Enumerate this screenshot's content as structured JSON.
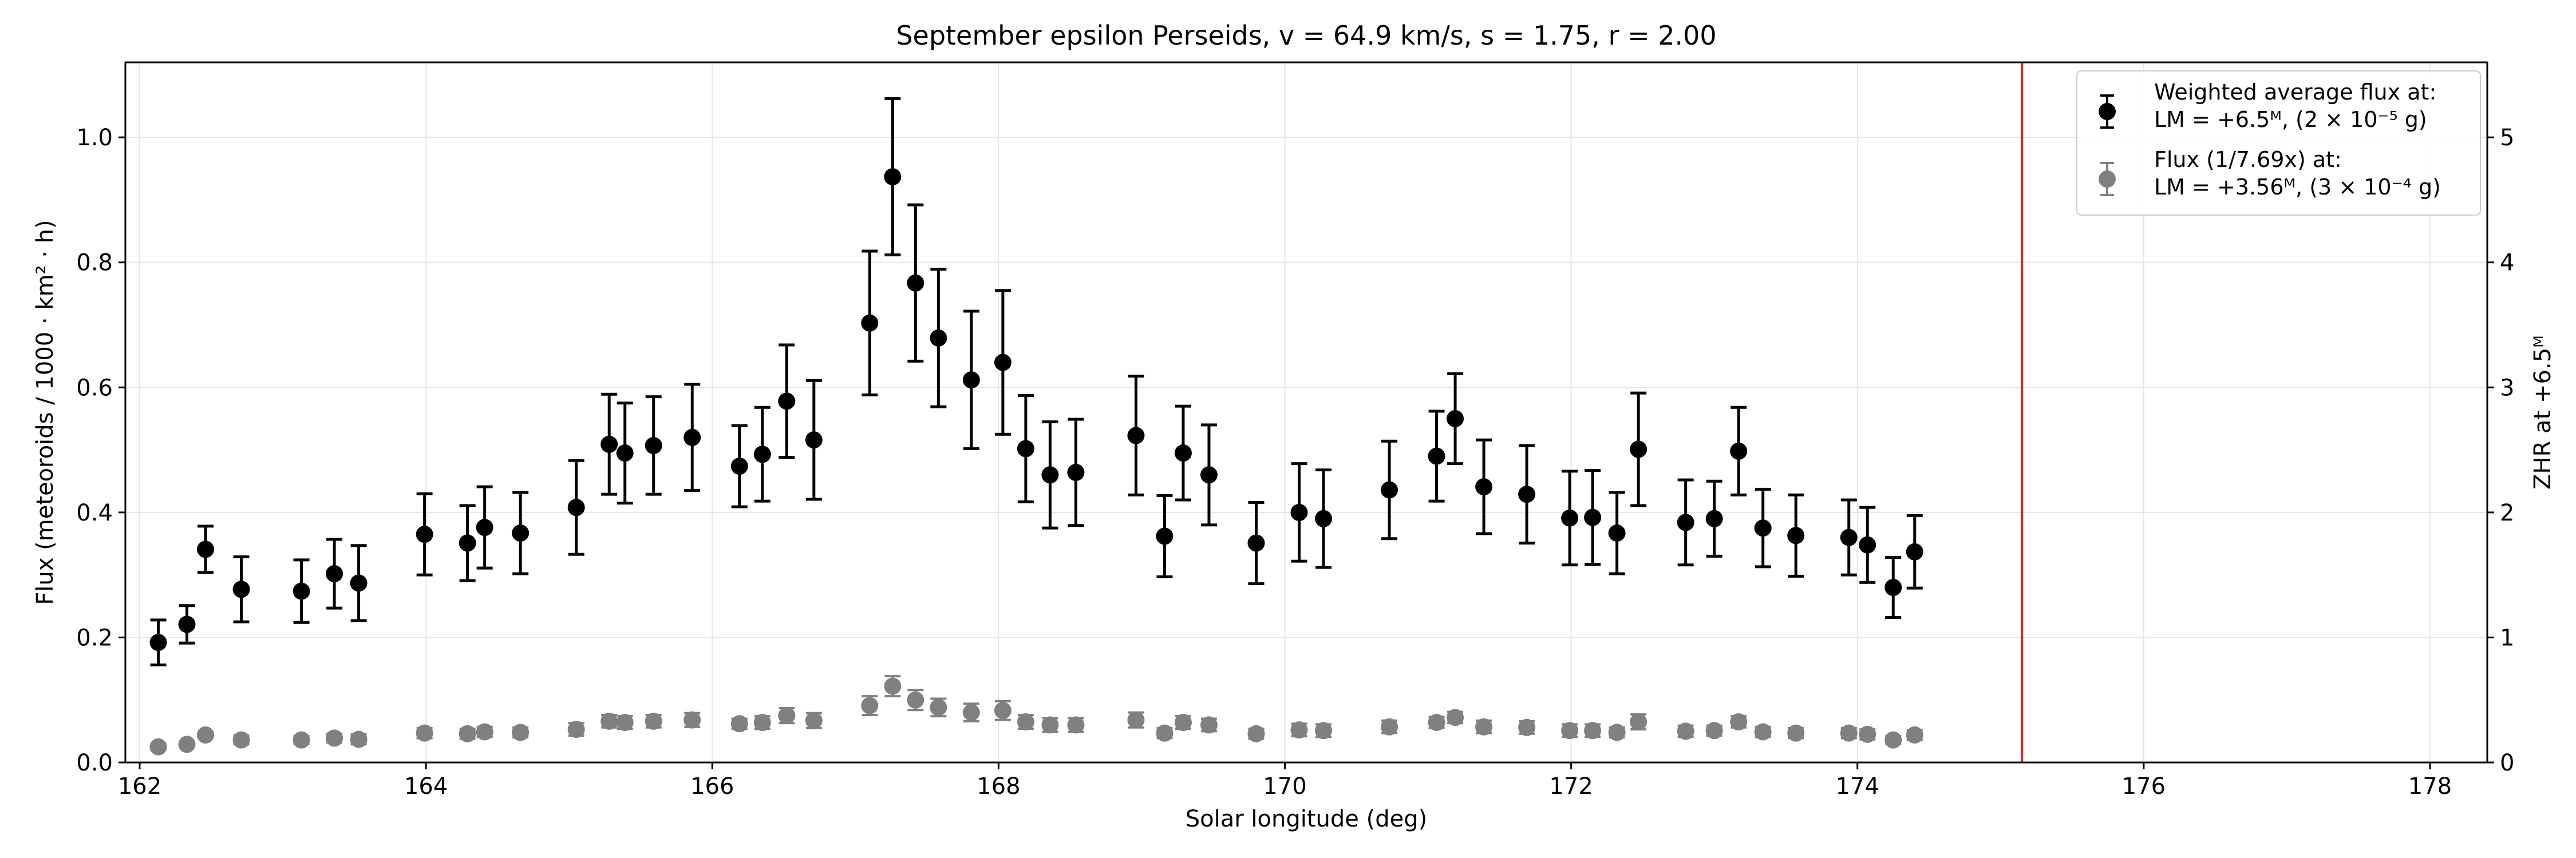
{
  "chart_data": {
    "type": "scatter",
    "title": "September epsilon Perseids, v = 64.9 km/s, s = 1.75, r = 2.00",
    "xlabel": "Solar longitude (deg)",
    "ylabel": "Flux (meteoroids / 1000 · km² · h)",
    "ylabel_right": "ZHR at +6.5ᴹ",
    "xlim": [
      161.9,
      178.4
    ],
    "ylim": [
      0,
      1.12
    ],
    "ylim_right": [
      0,
      5.6
    ],
    "xticks": [
      162,
      164,
      166,
      168,
      170,
      172,
      174,
      176,
      178
    ],
    "yticks": [
      0.0,
      0.2,
      0.4,
      0.6,
      0.8,
      1.0
    ],
    "yticks_right": [
      0,
      1,
      2,
      3,
      4,
      5
    ],
    "grid": true,
    "legend_position": "top-right",
    "vertical_line": {
      "x": 175.15,
      "color": "#d62728"
    },
    "series": [
      {
        "name": "Weighted average flux at:\nLM = +6.5ᴹ, (2 × 10⁻⁵ g)",
        "color": "#000000",
        "x": [
          162.13,
          162.33,
          162.46,
          162.71,
          163.13,
          163.36,
          163.53,
          163.99,
          164.29,
          164.41,
          164.66,
          165.05,
          165.28,
          165.39,
          165.59,
          165.86,
          166.19,
          166.35,
          166.52,
          166.71,
          167.1,
          167.26,
          167.42,
          167.58,
          167.81,
          168.03,
          168.19,
          168.36,
          168.54,
          168.96,
          169.16,
          169.29,
          169.47,
          169.8,
          170.1,
          170.27,
          170.73,
          171.06,
          171.19,
          171.39,
          171.69,
          171.99,
          172.15,
          172.32,
          172.47,
          172.8,
          173.0,
          173.17,
          173.34,
          173.57,
          173.94,
          174.07,
          174.25,
          174.4
        ],
        "y": [
          0.192,
          0.221,
          0.341,
          0.277,
          0.274,
          0.302,
          0.287,
          0.365,
          0.351,
          0.376,
          0.367,
          0.408,
          0.509,
          0.495,
          0.507,
          0.52,
          0.474,
          0.493,
          0.578,
          0.516,
          0.703,
          0.937,
          0.767,
          0.679,
          0.612,
          0.64,
          0.502,
          0.46,
          0.464,
          0.523,
          0.362,
          0.495,
          0.46,
          0.351,
          0.4,
          0.39,
          0.436,
          0.49,
          0.55,
          0.441,
          0.429,
          0.391,
          0.392,
          0.367,
          0.501,
          0.384,
          0.39,
          0.498,
          0.375,
          0.363,
          0.36,
          0.348,
          0.28,
          0.337
        ],
        "yerr": [
          0.036,
          0.03,
          0.037,
          0.052,
          0.05,
          0.055,
          0.06,
          0.065,
          0.06,
          0.065,
          0.065,
          0.075,
          0.08,
          0.08,
          0.078,
          0.085,
          0.065,
          0.075,
          0.09,
          0.095,
          0.115,
          0.125,
          0.125,
          0.11,
          0.11,
          0.115,
          0.085,
          0.085,
          0.085,
          0.095,
          0.065,
          0.075,
          0.08,
          0.065,
          0.078,
          0.078,
          0.078,
          0.072,
          0.072,
          0.075,
          0.078,
          0.075,
          0.075,
          0.065,
          0.09,
          0.068,
          0.06,
          0.07,
          0.062,
          0.065,
          0.06,
          0.06,
          0.048,
          0.058
        ]
      },
      {
        "name": "Flux (1/7.69x) at:\nLM = +3.56ᴹ, (3 × 10⁻⁴ g)",
        "color": "#808080",
        "x": [
          162.13,
          162.33,
          162.46,
          162.71,
          163.13,
          163.36,
          163.53,
          163.99,
          164.29,
          164.41,
          164.66,
          165.05,
          165.28,
          165.39,
          165.59,
          165.86,
          166.19,
          166.35,
          166.52,
          166.71,
          167.1,
          167.26,
          167.42,
          167.58,
          167.81,
          168.03,
          168.19,
          168.36,
          168.54,
          168.96,
          169.16,
          169.29,
          169.47,
          169.8,
          170.1,
          170.27,
          170.73,
          171.06,
          171.19,
          171.39,
          171.69,
          171.99,
          172.15,
          172.32,
          172.47,
          172.8,
          173.0,
          173.17,
          173.34,
          173.57,
          173.94,
          174.07,
          174.25,
          174.4
        ],
        "y": [
          0.025,
          0.029,
          0.044,
          0.036,
          0.036,
          0.039,
          0.037,
          0.047,
          0.046,
          0.049,
          0.048,
          0.053,
          0.066,
          0.064,
          0.066,
          0.068,
          0.062,
          0.064,
          0.075,
          0.067,
          0.091,
          0.122,
          0.1,
          0.088,
          0.08,
          0.083,
          0.065,
          0.06,
          0.06,
          0.068,
          0.047,
          0.064,
          0.06,
          0.046,
          0.052,
          0.051,
          0.057,
          0.064,
          0.072,
          0.057,
          0.056,
          0.051,
          0.051,
          0.048,
          0.065,
          0.05,
          0.051,
          0.065,
          0.049,
          0.047,
          0.047,
          0.045,
          0.036,
          0.044
        ],
        "yerr": [
          0.005,
          0.004,
          0.005,
          0.007,
          0.006,
          0.007,
          0.008,
          0.008,
          0.008,
          0.008,
          0.008,
          0.01,
          0.01,
          0.01,
          0.01,
          0.011,
          0.008,
          0.01,
          0.012,
          0.012,
          0.015,
          0.016,
          0.016,
          0.014,
          0.014,
          0.015,
          0.011,
          0.011,
          0.011,
          0.012,
          0.008,
          0.01,
          0.01,
          0.008,
          0.01,
          0.01,
          0.01,
          0.009,
          0.009,
          0.01,
          0.01,
          0.01,
          0.01,
          0.008,
          0.012,
          0.009,
          0.008,
          0.009,
          0.008,
          0.008,
          0.008,
          0.008,
          0.006,
          0.008
        ]
      }
    ]
  }
}
